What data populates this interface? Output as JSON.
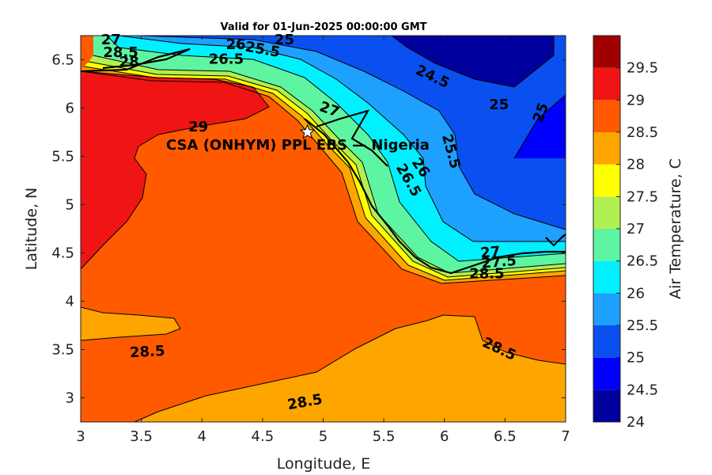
{
  "chart_data": {
    "type": "heatmap",
    "title": "Valid for 01-Jun-2025 00:00:00 GMT",
    "xlabel": "Longitude, E",
    "ylabel": "Latitude, N",
    "xlim": [
      3,
      7
    ],
    "ylim": [
      2.75,
      6.75
    ],
    "xticks": [
      "3",
      "3.5",
      "4",
      "4.5",
      "5",
      "5.5",
      "6",
      "6.5",
      "7"
    ],
    "yticks": [
      "3",
      "3.5",
      "4",
      "4.5",
      "5",
      "5.5",
      "6",
      "6.5"
    ],
    "colorbar": {
      "label": "Air Temperature, C",
      "ticks": [
        "24",
        "24.5",
        "25",
        "25.5",
        "26",
        "26.5",
        "27",
        "27.5",
        "28",
        "28.5",
        "29",
        "29.5"
      ],
      "levels": [
        24,
        24.5,
        25,
        25.5,
        26,
        26.5,
        27,
        27.5,
        28,
        28.5,
        29,
        29.5
      ],
      "colors": [
        "#00009c",
        "#0000ff",
        "#0a50f0",
        "#1ea0ff",
        "#00f0ff",
        "#5ef5a2",
        "#b0f050",
        "#ffff00",
        "#ffa500",
        "#ff5a00",
        "#f01414",
        "#a00000"
      ]
    },
    "site": {
      "label": "CSA (ONHYM) PPL EBS — Nigeria",
      "lon": 4.87,
      "lat": 5.75,
      "marker": "white-star"
    },
    "contour_labels": [
      {
        "text": "29",
        "lon": 3.97,
        "lat": 5.8,
        "angle": 0
      },
      {
        "text": "28.5",
        "lon": 3.55,
        "lat": 3.47,
        "angle": -3
      },
      {
        "text": "28.5",
        "lon": 4.85,
        "lat": 2.95,
        "angle": -10
      },
      {
        "text": "28.5",
        "lon": 6.45,
        "lat": 3.5,
        "angle": 25
      },
      {
        "text": "28.5",
        "lon": 6.35,
        "lat": 4.28,
        "angle": 0
      },
      {
        "text": "27",
        "lon": 6.38,
        "lat": 4.5,
        "angle": -5
      },
      {
        "text": "27.5",
        "lon": 6.45,
        "lat": 4.4,
        "angle": -5
      },
      {
        "text": "26",
        "lon": 4.28,
        "lat": 6.65,
        "angle": 0
      },
      {
        "text": "26.5",
        "lon": 4.2,
        "lat": 6.5,
        "angle": 0
      },
      {
        "text": "25.5",
        "lon": 4.5,
        "lat": 6.6,
        "angle": 10
      },
      {
        "text": "25",
        "lon": 4.68,
        "lat": 6.7,
        "angle": 0
      },
      {
        "text": "24.5",
        "lon": 5.9,
        "lat": 6.32,
        "angle": 25
      },
      {
        "text": "25",
        "lon": 6.45,
        "lat": 6.03,
        "angle": 0
      },
      {
        "text": "25",
        "lon": 6.8,
        "lat": 5.95,
        "angle": -70
      },
      {
        "text": "25.5",
        "lon": 6.05,
        "lat": 5.55,
        "angle": 75
      },
      {
        "text": "26",
        "lon": 5.8,
        "lat": 5.38,
        "angle": 55
      },
      {
        "text": "26.5",
        "lon": 5.7,
        "lat": 5.25,
        "angle": 60
      },
      {
        "text": "27",
        "lon": 5.05,
        "lat": 5.98,
        "angle": 20
      },
      {
        "text": "27",
        "lon": 3.25,
        "lat": 6.7,
        "angle": 0
      },
      {
        "text": "28.5",
        "lon": 3.33,
        "lat": 6.57,
        "angle": 0
      },
      {
        "text": "28",
        "lon": 3.4,
        "lat": 6.47,
        "angle": 0
      }
    ]
  }
}
